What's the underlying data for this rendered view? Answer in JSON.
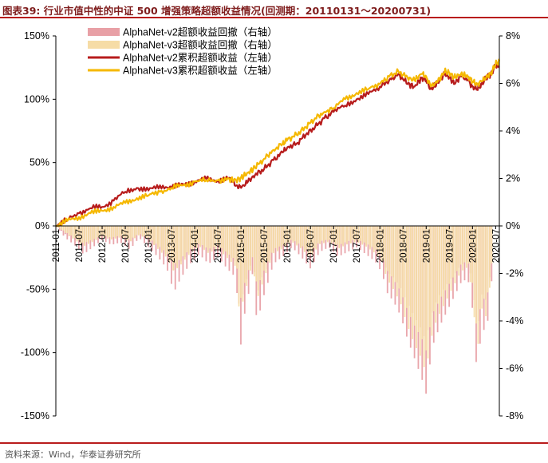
{
  "header": {
    "title": "图表39:   行业市值中性的中证 500 增强策略超额收益情况(回测期：20110131～20200731)"
  },
  "footer": {
    "source": "资料来源：Wind，华泰证券研究所"
  },
  "chart_data": {
    "type": "line",
    "title": "",
    "xlabel": "",
    "ylabel": "",
    "ylim": [
      -150,
      150
    ],
    "y_unit": "%",
    "y_ticks": [
      -150,
      -100,
      -50,
      0,
      50,
      100,
      150
    ],
    "y_tick_labels": [
      "-150%",
      "-100%",
      "-50%",
      "0%",
      "50%",
      "100%",
      "150%"
    ],
    "y2lim": [
      -8,
      8
    ],
    "y2_ticks": [
      -8,
      -6,
      -4,
      -2,
      0,
      2,
      4,
      6,
      8
    ],
    "y2_tick_labels": [
      "-8%",
      "-6%",
      "-4%",
      "-2%",
      "0%",
      "2%",
      "4%",
      "6%",
      "8%"
    ],
    "x_range": [
      2011.0,
      2020.58
    ],
    "x_tick_labels": [
      "2011-01",
      "2011-07",
      "2012-01",
      "2012-07",
      "2013-01",
      "2013-07",
      "2014-01",
      "2014-07",
      "2015-01",
      "2015-07",
      "2016-01",
      "2016-07",
      "2017-01",
      "2017-07",
      "2018-01",
      "2018-07",
      "2019-01",
      "2019-07",
      "2020-01",
      "2020-07"
    ],
    "legend": {
      "position": "top-left",
      "entries": [
        {
          "name": "AlphaNet-v2超额收益回撤（右轴）",
          "kind": "area",
          "color": "#e8a0a6"
        },
        {
          "name": "AlphaNet-v3超额收益回撤（右轴）",
          "kind": "area",
          "color": "#f6dca6"
        },
        {
          "name": "AlphaNet-v2累积超额收益（左轴）",
          "kind": "line",
          "color": "#b71c1c"
        },
        {
          "name": "AlphaNet-v3累积超额收益（左轴）",
          "kind": "line",
          "color": "#f5b800"
        }
      ]
    },
    "series": [
      {
        "name": "AlphaNet-v2累积超额收益（左轴）",
        "axis": "left",
        "color": "#b71c1c",
        "x": [
          2011.0,
          2011.25,
          2011.5,
          2011.75,
          2012.0,
          2012.25,
          2012.5,
          2012.75,
          2013.0,
          2013.25,
          2013.5,
          2013.75,
          2014.0,
          2014.25,
          2014.5,
          2014.75,
          2014.9,
          2015.0,
          2015.15,
          2015.3,
          2015.5,
          2015.7,
          2015.9,
          2016.0,
          2016.2,
          2016.4,
          2016.6,
          2016.8,
          2017.0,
          2017.25,
          2017.5,
          2017.75,
          2018.0,
          2018.2,
          2018.4,
          2018.6,
          2018.75,
          2018.9,
          2019.0,
          2019.1,
          2019.25,
          2019.4,
          2019.5,
          2019.6,
          2019.75,
          2019.9,
          2020.0,
          2020.1,
          2020.2,
          2020.3,
          2020.4,
          2020.5,
          2020.58
        ],
        "y": [
          0,
          5,
          10,
          14,
          15,
          20,
          27,
          30,
          28,
          32,
          30,
          33,
          35,
          37,
          36,
          38,
          32,
          30,
          35,
          40,
          45,
          52,
          58,
          62,
          65,
          72,
          78,
          85,
          90,
          95,
          100,
          104,
          110,
          115,
          120,
          112,
          110,
          117,
          115,
          108,
          113,
          120,
          118,
          112,
          118,
          115,
          110,
          108,
          112,
          117,
          120,
          127,
          125
        ]
      },
      {
        "name": "AlphaNet-v3累积超额收益（左轴）",
        "axis": "left",
        "color": "#f5b800",
        "x": [
          2011.0,
          2011.25,
          2011.5,
          2011.75,
          2012.0,
          2012.25,
          2012.5,
          2012.75,
          2013.0,
          2013.25,
          2013.5,
          2013.75,
          2014.0,
          2014.25,
          2014.5,
          2014.75,
          2014.9,
          2015.0,
          2015.15,
          2015.3,
          2015.5,
          2015.7,
          2015.9,
          2016.0,
          2016.2,
          2016.4,
          2016.6,
          2016.8,
          2017.0,
          2017.25,
          2017.5,
          2017.75,
          2018.0,
          2018.2,
          2018.4,
          2018.6,
          2018.75,
          2018.9,
          2019.0,
          2019.1,
          2019.25,
          2019.4,
          2019.5,
          2019.6,
          2019.75,
          2019.9,
          2020.0,
          2020.1,
          2020.2,
          2020.3,
          2020.4,
          2020.5,
          2020.58
        ],
        "y": [
          0,
          4,
          7,
          10,
          12,
          15,
          18,
          22,
          24,
          27,
          30,
          32,
          35,
          36,
          36,
          37,
          36,
          38,
          42,
          46,
          53,
          60,
          65,
          68,
          72,
          78,
          85,
          90,
          93,
          100,
          105,
          108,
          112,
          118,
          122,
          117,
          115,
          120,
          118,
          110,
          114,
          122,
          121,
          117,
          120,
          118,
          114,
          112,
          114,
          118,
          120,
          128,
          130
        ]
      },
      {
        "name": "AlphaNet-v2超额收益回撤（右轴）",
        "axis": "right",
        "color": "#e8a0a6",
        "x": [
          2011.08,
          2011.2,
          2011.4,
          2011.6,
          2011.8,
          2012.0,
          2012.2,
          2012.4,
          2012.6,
          2012.8,
          2013.0,
          2013.2,
          2013.4,
          2013.55,
          2013.7,
          2013.9,
          2014.1,
          2014.3,
          2014.5,
          2014.7,
          2014.9,
          2014.97,
          2015.05,
          2015.15,
          2015.25,
          2015.35,
          2015.45,
          2015.55,
          2015.7,
          2015.9,
          2016.1,
          2016.3,
          2016.5,
          2016.7,
          2016.9,
          2017.1,
          2017.3,
          2017.5,
          2017.7,
          2017.9,
          2018.05,
          2018.15,
          2018.3,
          2018.45,
          2018.6,
          2018.75,
          2018.9,
          2019.0,
          2019.05,
          2019.15,
          2019.3,
          2019.45,
          2019.6,
          2019.75,
          2019.9,
          2020.0,
          2020.1,
          2020.2,
          2020.3,
          2020.45
        ],
        "y": [
          -0.2,
          -0.5,
          -0.8,
          -1.2,
          -0.9,
          -0.6,
          -0.8,
          -0.7,
          -1.0,
          -0.5,
          -0.9,
          -1.3,
          -1.8,
          -2.8,
          -2.2,
          -1.6,
          -1.2,
          -1.6,
          -1.3,
          -1.8,
          -2.2,
          -5.5,
          -4.0,
          -3.0,
          -2.0,
          -4.2,
          -3.2,
          -2.6,
          -1.6,
          -1.3,
          -0.9,
          -1.3,
          -1.8,
          -1.1,
          -0.9,
          -1.3,
          -1.1,
          -0.9,
          -1.2,
          -1.5,
          -2.0,
          -2.8,
          -3.2,
          -3.8,
          -4.8,
          -5.6,
          -6.4,
          -7.1,
          -6.2,
          -5.0,
          -4.2,
          -3.6,
          -3.0,
          -2.4,
          -2.2,
          -3.5,
          -6.3,
          -4.2,
          -4.6,
          -1.6
        ]
      },
      {
        "name": "AlphaNet-v3超额收益回撤（右轴）",
        "axis": "right",
        "color": "#f6dca6",
        "x": [
          2011.08,
          2011.2,
          2011.4,
          2011.6,
          2011.8,
          2012.0,
          2012.2,
          2012.4,
          2012.6,
          2012.8,
          2013.0,
          2013.2,
          2013.4,
          2013.55,
          2013.7,
          2013.9,
          2014.1,
          2014.3,
          2014.5,
          2014.7,
          2014.9,
          2014.97,
          2015.05,
          2015.15,
          2015.25,
          2015.35,
          2015.45,
          2015.55,
          2015.7,
          2015.9,
          2016.1,
          2016.3,
          2016.5,
          2016.7,
          2016.9,
          2017.1,
          2017.3,
          2017.5,
          2017.7,
          2017.9,
          2018.05,
          2018.15,
          2018.3,
          2018.45,
          2018.6,
          2018.75,
          2018.9,
          2019.0,
          2019.05,
          2019.15,
          2019.3,
          2019.45,
          2019.6,
          2019.75,
          2019.9,
          2020.0,
          2020.1,
          2020.2,
          2020.3,
          2020.45
        ],
        "y": [
          -0.1,
          -0.3,
          -0.6,
          -0.9,
          -0.7,
          -0.5,
          -0.6,
          -0.5,
          -0.7,
          -0.4,
          -0.6,
          -1.0,
          -1.4,
          -2.0,
          -1.7,
          -1.2,
          -0.9,
          -1.2,
          -1.0,
          -1.4,
          -1.8,
          -4.0,
          -3.2,
          -2.4,
          -1.6,
          -3.2,
          -2.6,
          -2.0,
          -1.2,
          -1.0,
          -0.7,
          -1.0,
          -1.4,
          -0.8,
          -0.7,
          -1.0,
          -0.8,
          -0.7,
          -0.9,
          -1.2,
          -1.6,
          -2.3,
          -2.8,
          -3.4,
          -4.4,
          -5.2,
          -5.8,
          -6.5,
          -5.6,
          -4.5,
          -3.8,
          -3.2,
          -2.6,
          -2.0,
          -1.8,
          -3.0,
          -5.6,
          -3.6,
          -4.0,
          -1.3
        ]
      }
    ]
  }
}
